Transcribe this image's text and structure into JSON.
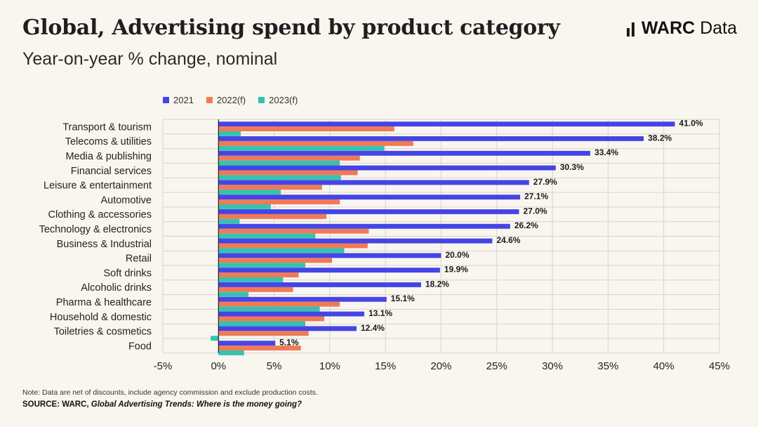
{
  "header": {
    "title": "Global, Advertising spend by product category",
    "subtitle": "Year-on-year % change, nominal"
  },
  "logo": {
    "brand": "WARC",
    "suffix": "Data",
    "icon": "warc-bars-icon"
  },
  "footer": {
    "note": "Note: Data are net of discounts, include agency commission and exclude production costs.",
    "source_prefix": "SOURCE: WARC,",
    "source_title": "Global Advertising Trends: Where is the money going?"
  },
  "colors": {
    "series_2021": "#4545e6",
    "series_2022": "#f07a57",
    "series_2023": "#35c2b0",
    "grid": "#d8d4c8",
    "axis": "#222222"
  },
  "chart_data": {
    "type": "bar",
    "orientation": "horizontal",
    "title": "Global, Advertising spend by product category",
    "subtitle": "Year-on-year % change, nominal",
    "categories": [
      "Transport & tourism",
      "Telecoms & utilities",
      "Media & publishing",
      "Financial services",
      "Leisure & entertainment",
      "Automotive",
      "Clothing & accessories",
      "Technology & electronics",
      "Business & Industrial",
      "Retail",
      "Soft drinks",
      "Alcoholic drinks",
      "Pharma & healthcare",
      "Household & domestic",
      "Toiletries & cosmetics",
      "Food"
    ],
    "series": [
      {
        "name": "2021",
        "color": "#4545e6",
        "values": [
          41.0,
          38.2,
          33.4,
          30.3,
          27.9,
          27.1,
          27.0,
          26.2,
          24.6,
          20.0,
          19.9,
          18.2,
          15.1,
          13.1,
          12.4,
          5.1
        ],
        "labels": [
          "41.0%",
          "38.2%",
          "33.4%",
          "30.3%",
          "27.9%",
          "27.1%",
          "27.0%",
          "26.2%",
          "24.6%",
          "20.0%",
          "19.9%",
          "18.2%",
          "15.1%",
          "13.1%",
          "12.4%",
          "5.1%"
        ]
      },
      {
        "name": "2022(f)",
        "color": "#f07a57",
        "values": [
          15.8,
          17.5,
          12.7,
          12.5,
          9.3,
          10.9,
          9.7,
          13.5,
          13.4,
          10.2,
          7.2,
          6.7,
          10.9,
          9.5,
          8.1,
          7.4
        ]
      },
      {
        "name": "2023(f)",
        "color": "#35c2b0",
        "values": [
          2.0,
          14.9,
          10.9,
          11.0,
          5.6,
          4.7,
          1.9,
          8.7,
          11.3,
          7.8,
          5.8,
          2.7,
          9.1,
          7.8,
          -0.7,
          2.3
        ]
      }
    ],
    "xlim": [
      -5,
      45
    ],
    "xticks": [
      "-5%",
      "0%",
      "5%",
      "10%",
      "15%",
      "20%",
      "25%",
      "30%",
      "35%",
      "40%",
      "45%"
    ],
    "xtick_values": [
      -5,
      0,
      5,
      10,
      15,
      20,
      25,
      30,
      35,
      40,
      45
    ],
    "grid": true,
    "legend": "top-left"
  }
}
